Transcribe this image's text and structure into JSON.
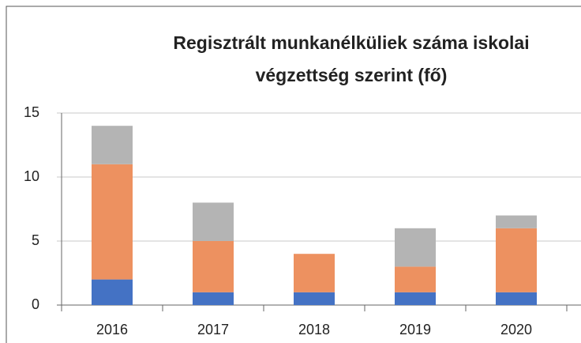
{
  "chart_data": {
    "type": "stacked_bar",
    "title": [
      "Regisztrált munkanélküliek száma iskolai",
      "végzettség szerint (fő)"
    ],
    "categories": [
      "2016",
      "2017",
      "2018",
      "2019",
      "2020"
    ],
    "series": [
      {
        "color": "#4472c4",
        "values": [
          2,
          1,
          1,
          1,
          1
        ]
      },
      {
        "color": "#ed9160",
        "values": [
          9,
          4,
          3,
          2,
          5
        ]
      },
      {
        "color": "#b4b4b4",
        "values": [
          3,
          3,
          0,
          3,
          1
        ]
      }
    ],
    "ylim": [
      0,
      15
    ],
    "yticks": [
      0,
      5,
      10,
      15
    ],
    "grid": true
  }
}
